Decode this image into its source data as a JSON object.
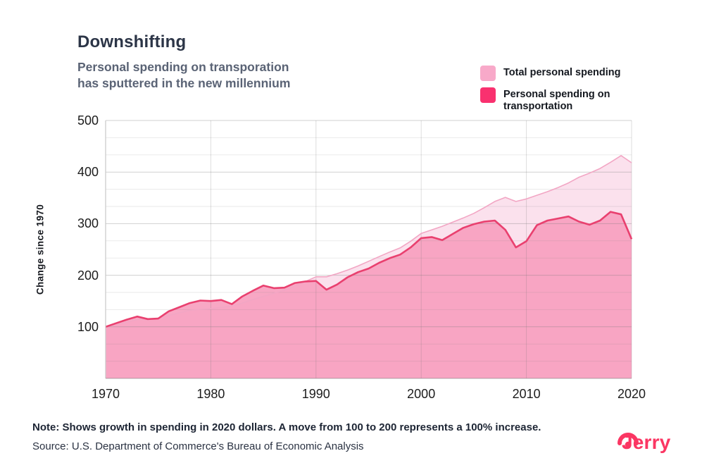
{
  "header": {
    "title": "Downshifting",
    "subtitle": "Personal spending on transporation\nhas sputtered in the new millennium"
  },
  "legend": {
    "items": [
      {
        "label": "Total personal spending",
        "color": "#F8A9C9"
      },
      {
        "label": "Personal spending on transportation",
        "color": "#F9316F"
      }
    ]
  },
  "footer": {
    "note": "Note: Shows growth in spending in 2020 dollars. A move from 100 to 200 represents a 100% increase.",
    "source": "Source: U.S. Department of Commerce's Bureau of Economic Analysis",
    "brand": "Jerry",
    "brand_color": "#FB3663"
  },
  "chart_data": {
    "type": "area",
    "title": "Downshifting",
    "ylabel": "Change since 1970",
    "ylim": [
      0,
      500
    ],
    "xlim": [
      1970,
      2020
    ],
    "yticks": [
      100,
      200,
      300,
      400,
      500
    ],
    "xticks": [
      1970,
      1980,
      1990,
      2000,
      2010,
      2020
    ],
    "grid": "major-and-minor-horizontal, vertical-decades",
    "legend_position": "top-right",
    "x": [
      1970,
      1971,
      1972,
      1973,
      1974,
      1975,
      1976,
      1977,
      1978,
      1979,
      1980,
      1981,
      1982,
      1983,
      1984,
      1985,
      1986,
      1987,
      1988,
      1989,
      1990,
      1991,
      1992,
      1993,
      1994,
      1995,
      1996,
      1997,
      1998,
      1999,
      2000,
      2001,
      2002,
      2003,
      2004,
      2005,
      2006,
      2007,
      2008,
      2009,
      2010,
      2011,
      2012,
      2013,
      2014,
      2015,
      2016,
      2017,
      2018,
      2019,
      2020
    ],
    "series": [
      {
        "name": "Total personal spending",
        "line_color": "#F2A6C4",
        "fill_color": "#FBE0EC",
        "values": [
          100,
          104,
          109,
          114,
          114,
          117,
          122,
          127,
          132,
          134,
          135,
          138,
          140,
          146,
          153,
          159,
          165,
          171,
          179,
          188,
          197,
          197,
          203,
          210,
          218,
          227,
          236,
          245,
          253,
          266,
          281,
          288,
          295,
          303,
          311,
          320,
          331,
          343,
          351,
          343,
          348,
          355,
          362,
          370,
          379,
          390,
          398,
          407,
          419,
          432,
          418
        ]
      },
      {
        "name": "Personal spending on transportation",
        "line_color": "#E9406F",
        "fill_color": "#F7A0C0",
        "values": [
          100,
          107,
          114,
          120,
          115,
          116,
          130,
          138,
          146,
          151,
          150,
          152,
          144,
          159,
          170,
          180,
          175,
          176,
          185,
          188,
          189,
          172,
          182,
          196,
          206,
          213,
          224,
          233,
          240,
          254,
          272,
          274,
          268,
          280,
          292,
          299,
          304,
          306,
          288,
          254,
          266,
          297,
          306,
          310,
          314,
          304,
          298,
          306,
          323,
          318,
          270
        ]
      }
    ]
  }
}
